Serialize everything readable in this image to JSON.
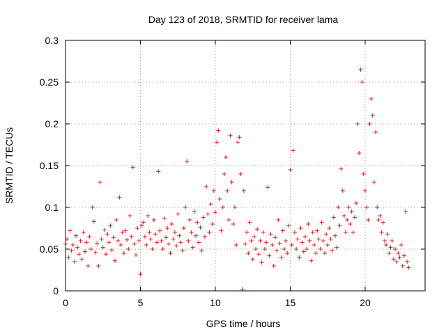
{
  "chart_data": {
    "type": "scatter",
    "title": "Day 123 of 2018, SRMTID for receiver lama",
    "xlabel": "GPS time / hours",
    "ylabel": "SRMTID / TECUs",
    "xlim": [
      0,
      24
    ],
    "ylim": [
      0,
      0.3
    ],
    "x_ticks": [
      0,
      5,
      10,
      15,
      20
    ],
    "x_tick_labels": [
      "0",
      "5",
      "10",
      "15",
      "20"
    ],
    "y_ticks": [
      0,
      0.05,
      0.1,
      0.15,
      0.2,
      0.25,
      0.3
    ],
    "y_tick_labels": [
      "0",
      "0.05",
      "0.1",
      "0.15",
      "0.2",
      "0.25",
      "0.3"
    ],
    "grid": true,
    "marker": "plus",
    "color": "#e41a1c",
    "series": [
      {
        "name": "SRMTID",
        "points": [
          [
            0.0,
            0.056
          ],
          [
            0.1,
            0.062
          ],
          [
            0.2,
            0.04
          ],
          [
            0.3,
            0.072
          ],
          [
            0.4,
            0.048
          ],
          [
            0.5,
            0.055
          ],
          [
            0.6,
            0.035
          ],
          [
            0.7,
            0.066
          ],
          [
            0.8,
            0.052
          ],
          [
            0.9,
            0.044
          ],
          [
            1.0,
            0.06
          ],
          [
            1.1,
            0.038
          ],
          [
            1.2,
            0.07
          ],
          [
            1.3,
            0.047
          ],
          [
            1.4,
            0.058
          ],
          [
            1.5,
            0.03
          ],
          [
            1.6,
            0.065
          ],
          [
            1.7,
            0.05
          ],
          [
            1.8,
            0.1
          ],
          [
            1.9,
            0.083
          ],
          [
            2.0,
            0.046
          ],
          [
            2.1,
            0.057
          ],
          [
            2.2,
            0.03
          ],
          [
            2.3,
            0.13
          ],
          [
            2.4,
            0.062
          ],
          [
            2.5,
            0.052
          ],
          [
            2.6,
            0.073
          ],
          [
            2.7,
            0.044
          ],
          [
            2.8,
            0.068
          ],
          [
            2.9,
            0.058
          ],
          [
            3.0,
            0.078
          ],
          [
            3.1,
            0.049
          ],
          [
            3.2,
            0.064
          ],
          [
            3.3,
            0.036
          ],
          [
            3.4,
            0.085
          ],
          [
            3.5,
            0.06
          ],
          [
            3.6,
            0.112
          ],
          [
            3.7,
            0.055
          ],
          [
            3.8,
            0.07
          ],
          [
            3.9,
            0.045
          ],
          [
            4.0,
            0.072
          ],
          [
            4.1,
            0.061
          ],
          [
            4.2,
            0.05
          ],
          [
            4.3,
            0.09
          ],
          [
            4.4,
            0.065
          ],
          [
            4.5,
            0.148
          ],
          [
            4.6,
            0.056
          ],
          [
            4.7,
            0.043
          ],
          [
            4.8,
            0.075
          ],
          [
            4.9,
            0.06
          ],
          [
            5.0,
            0.02
          ],
          [
            5.1,
            0.078
          ],
          [
            5.2,
            0.082
          ],
          [
            5.3,
            0.065
          ],
          [
            5.4,
            0.055
          ],
          [
            5.5,
            0.09
          ],
          [
            5.6,
            0.07
          ],
          [
            5.7,
            0.062
          ],
          [
            5.8,
            0.05
          ],
          [
            5.9,
            0.085
          ],
          [
            6.0,
            0.068
          ],
          [
            6.1,
            0.058
          ],
          [
            6.2,
            0.143
          ],
          [
            6.3,
            0.072
          ],
          [
            6.4,
            0.06
          ],
          [
            6.5,
            0.05
          ],
          [
            6.6,
            0.087
          ],
          [
            6.7,
            0.064
          ],
          [
            6.8,
            0.075
          ],
          [
            6.9,
            0.056
          ],
          [
            7.0,
            0.045
          ],
          [
            7.1,
            0.08
          ],
          [
            7.2,
            0.062
          ],
          [
            7.3,
            0.07
          ],
          [
            7.4,
            0.054
          ],
          [
            7.5,
            0.092
          ],
          [
            7.6,
            0.066
          ],
          [
            7.7,
            0.058
          ],
          [
            7.8,
            0.048
          ],
          [
            7.9,
            0.075
          ],
          [
            8.0,
            0.1
          ],
          [
            8.1,
            0.155
          ],
          [
            8.2,
            0.06
          ],
          [
            8.3,
            0.085
          ],
          [
            8.4,
            0.07
          ],
          [
            8.5,
            0.052
          ],
          [
            8.6,
            0.095
          ],
          [
            8.7,
            0.066
          ],
          [
            8.8,
            0.082
          ],
          [
            8.9,
            0.058
          ],
          [
            9.0,
            0.076
          ],
          [
            9.1,
            0.048
          ],
          [
            9.2,
            0.088
          ],
          [
            9.3,
            0.065
          ],
          [
            9.4,
            0.125
          ],
          [
            9.5,
            0.092
          ],
          [
            9.6,
            0.07
          ],
          [
            9.7,
            0.104
          ],
          [
            9.8,
            0.08
          ],
          [
            9.9,
            0.12
          ],
          [
            10.0,
            0.094
          ],
          [
            10.1,
            0.178
          ],
          [
            10.2,
            0.192
          ],
          [
            10.3,
            0.11
          ],
          [
            10.4,
            0.072
          ],
          [
            10.5,
            0.1
          ],
          [
            10.6,
            0.14
          ],
          [
            10.7,
            0.16
          ],
          [
            10.8,
            0.12
          ],
          [
            10.9,
            0.085
          ],
          [
            11.0,
            0.186
          ],
          [
            11.1,
            0.13
          ],
          [
            11.2,
            0.08
          ],
          [
            11.3,
            0.1
          ],
          [
            11.4,
            0.055
          ],
          [
            11.5,
            0.178
          ],
          [
            11.6,
            0.184
          ],
          [
            11.7,
            0.14
          ],
          [
            11.8,
            0.002
          ],
          [
            11.9,
            0.12
          ],
          [
            12.0,
            0.056
          ],
          [
            12.1,
            0.07
          ],
          [
            12.2,
            0.045
          ],
          [
            12.3,
            0.082
          ],
          [
            12.4,
            0.06
          ],
          [
            12.5,
            0.038
          ],
          [
            12.6,
            0.065
          ],
          [
            12.7,
            0.05
          ],
          [
            12.8,
            0.074
          ],
          [
            12.9,
            0.044
          ],
          [
            13.0,
            0.06
          ],
          [
            13.1,
            0.034
          ],
          [
            13.2,
            0.07
          ],
          [
            13.3,
            0.05
          ],
          [
            13.4,
            0.058
          ],
          [
            13.5,
            0.124
          ],
          [
            13.6,
            0.042
          ],
          [
            13.7,
            0.068
          ],
          [
            13.8,
            0.055
          ],
          [
            13.9,
            0.03
          ],
          [
            14.0,
            0.064
          ],
          [
            14.1,
            0.048
          ],
          [
            14.2,
            0.085
          ],
          [
            14.3,
            0.057
          ],
          [
            14.4,
            0.04
          ],
          [
            14.5,
            0.072
          ],
          [
            14.6,
            0.05
          ],
          [
            14.7,
            0.06
          ],
          [
            14.8,
            0.045
          ],
          [
            14.9,
            0.078
          ],
          [
            15.0,
            0.145
          ],
          [
            15.1,
            0.055
          ],
          [
            15.2,
            0.168
          ],
          [
            15.3,
            0.07
          ],
          [
            15.4,
            0.05
          ],
          [
            15.5,
            0.062
          ],
          [
            15.6,
            0.04
          ],
          [
            15.7,
            0.075
          ],
          [
            15.8,
            0.058
          ],
          [
            15.9,
            0.047
          ],
          [
            16.0,
            0.065
          ],
          [
            16.1,
            0.05
          ],
          [
            16.2,
            0.08
          ],
          [
            16.3,
            0.06
          ],
          [
            16.4,
            0.036
          ],
          [
            16.5,
            0.07
          ],
          [
            16.6,
            0.055
          ],
          [
            16.7,
            0.045
          ],
          [
            16.8,
            0.072
          ],
          [
            16.9,
            0.062
          ],
          [
            17.0,
            0.05
          ],
          [
            17.1,
            0.082
          ],
          [
            17.2,
            0.06
          ],
          [
            17.3,
            0.045
          ],
          [
            17.4,
            0.068
          ],
          [
            17.5,
            0.055
          ],
          [
            17.6,
            0.075
          ],
          [
            17.7,
            0.062
          ],
          [
            17.8,
            0.048
          ],
          [
            17.9,
            0.088
          ],
          [
            18.0,
            0.066
          ],
          [
            18.1,
            0.052
          ],
          [
            18.2,
            0.1
          ],
          [
            18.3,
            0.078
          ],
          [
            18.4,
            0.146
          ],
          [
            18.5,
            0.12
          ],
          [
            18.6,
            0.09
          ],
          [
            18.7,
            0.07
          ],
          [
            18.8,
            0.085
          ],
          [
            18.9,
            0.1
          ],
          [
            19.0,
            0.08
          ],
          [
            19.1,
            0.095
          ],
          [
            19.2,
            0.07
          ],
          [
            19.3,
            0.088
          ],
          [
            19.4,
            0.105
          ],
          [
            19.5,
            0.2
          ],
          [
            19.6,
            0.165
          ],
          [
            19.7,
            0.265
          ],
          [
            19.8,
            0.25
          ],
          [
            19.9,
            0.14
          ],
          [
            20.0,
            0.12
          ],
          [
            20.1,
            0.1
          ],
          [
            20.2,
            0.085
          ],
          [
            20.3,
            0.2
          ],
          [
            20.4,
            0.23
          ],
          [
            20.5,
            0.21
          ],
          [
            20.6,
            0.13
          ],
          [
            20.7,
            0.19
          ],
          [
            20.8,
            0.1
          ],
          [
            20.9,
            0.085
          ],
          [
            21.0,
            0.09
          ],
          [
            21.1,
            0.07
          ],
          [
            21.2,
            0.082
          ],
          [
            21.3,
            0.06
          ],
          [
            21.4,
            0.055
          ],
          [
            21.5,
            0.068
          ],
          [
            21.6,
            0.045
          ],
          [
            21.7,
            0.052
          ],
          [
            21.8,
            0.06
          ],
          [
            21.9,
            0.038
          ],
          [
            22.0,
            0.05
          ],
          [
            22.1,
            0.035
          ],
          [
            22.2,
            0.045
          ],
          [
            22.3,
            0.04
          ],
          [
            22.4,
            0.055
          ],
          [
            22.5,
            0.03
          ],
          [
            22.6,
            0.042
          ],
          [
            22.7,
            0.095
          ],
          [
            22.8,
            0.035
          ],
          [
            22.9,
            0.028
          ]
        ]
      }
    ]
  }
}
